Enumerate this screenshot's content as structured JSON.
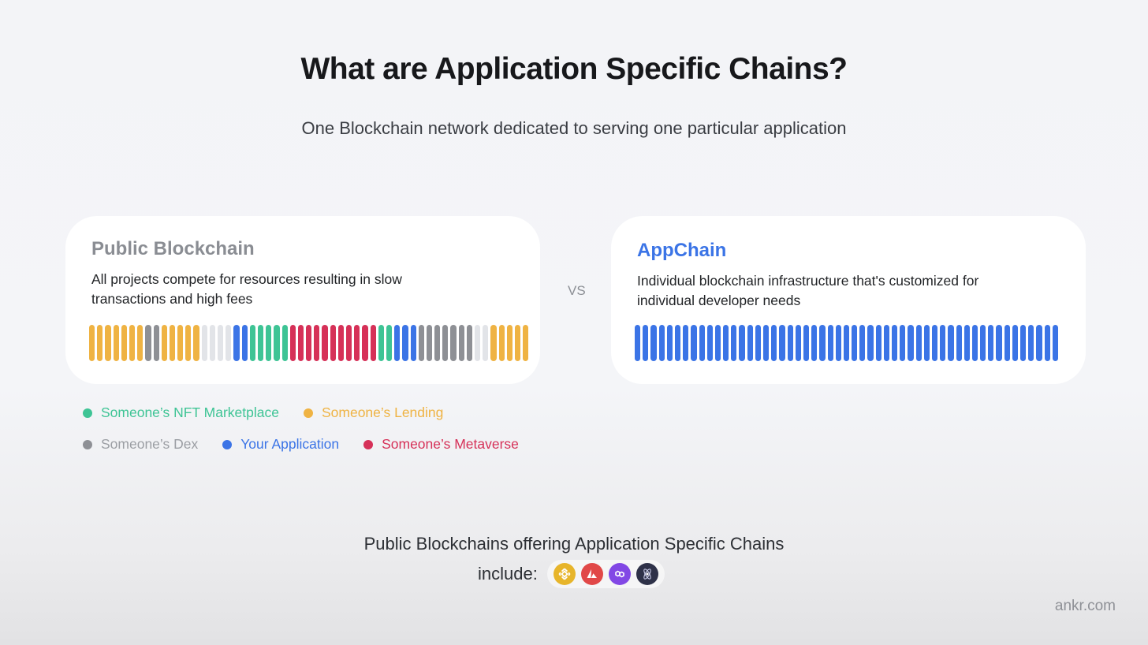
{
  "header": {
    "title": "What are Application Specific Chains?",
    "subtitle": "One Blockchain network dedicated to serving one particular application"
  },
  "public_card": {
    "title": "Public Blockchain",
    "description": "All projects compete for resources resulting in slow transactions and high fees",
    "bars": [
      "lending",
      "lending",
      "lending",
      "lending",
      "lending",
      "lending",
      "lending",
      "dex",
      "dex",
      "lending",
      "lending",
      "lending",
      "lending",
      "lending",
      "empty",
      "empty",
      "empty",
      "empty",
      "app",
      "app",
      "nft",
      "nft",
      "nft",
      "nft",
      "nft",
      "metaverse",
      "metaverse",
      "metaverse",
      "metaverse",
      "metaverse",
      "metaverse",
      "metaverse",
      "metaverse",
      "metaverse",
      "metaverse",
      "metaverse",
      "nft",
      "nft",
      "app",
      "app",
      "app",
      "dex",
      "dex",
      "dex",
      "dex",
      "dex",
      "dex",
      "dex",
      "empty",
      "empty",
      "lending",
      "lending",
      "lending",
      "lending",
      "lending"
    ]
  },
  "vs_label": "VS",
  "appchain_card": {
    "title": "AppChain",
    "description": "Individual blockchain infrastructure that's customized for individual developer needs",
    "bar_count": 53
  },
  "legend": {
    "row1": [
      {
        "key": "nft",
        "label": "Someone’s NFT Marketplace"
      },
      {
        "key": "lending",
        "label": "Someone’s Lending"
      }
    ],
    "row2": [
      {
        "key": "dex",
        "label": "Someone’s Dex"
      },
      {
        "key": "app",
        "label": "Your Application"
      },
      {
        "key": "metaverse",
        "label": "Someone’s Metaverse"
      }
    ]
  },
  "colors": {
    "nft": "#3ec495",
    "lending": "#efb343",
    "dex": "#8e9095",
    "app": "#3b74e6",
    "metaverse": "#d63158",
    "empty": "#e2e4e8",
    "nft_text": "#3ec495",
    "lending_text": "#efb343",
    "dex_text": "#9b9ea3",
    "app_text": "#3b74e6",
    "metaverse_text": "#d63158"
  },
  "bottom": {
    "line1": "Public Blockchains offering Application Specific Chains",
    "line2": "include:",
    "logos": [
      {
        "name": "bnb-chain-icon",
        "color": "#e7b52b"
      },
      {
        "name": "avalanche-icon",
        "color": "#e14848"
      },
      {
        "name": "polygon-icon",
        "color": "#8248e5"
      },
      {
        "name": "cosmos-icon",
        "color": "#2e3148"
      }
    ]
  },
  "footer": "ankr.com"
}
